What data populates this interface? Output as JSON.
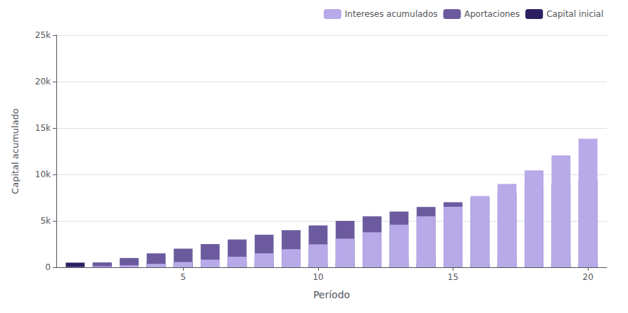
{
  "chart_data": {
    "type": "bar",
    "stacked": true,
    "xlabel": "Período",
    "ylabel": "Capital acumulado",
    "x": [
      1,
      2,
      3,
      4,
      5,
      6,
      7,
      8,
      9,
      10,
      11,
      12,
      13,
      14,
      15,
      16,
      17,
      18,
      19,
      20
    ],
    "series": [
      {
        "name": "Capital inicial",
        "color": "#2d2060",
        "values": [
          500,
          500,
          500,
          500,
          500,
          500,
          500,
          500,
          500,
          500,
          500,
          500,
          500,
          500,
          500,
          500,
          500,
          500,
          500,
          500
        ]
      },
      {
        "name": "Aportaciones",
        "color": "#6b5b9e",
        "values": [
          0,
          500,
          1000,
          1500,
          2000,
          2500,
          3000,
          3500,
          4000,
          4500,
          5000,
          5500,
          6000,
          6500,
          7000,
          7500,
          8000,
          8500,
          9000,
          9500
        ]
      },
      {
        "name": "Intereses acumulados",
        "color": "#b8a9e8",
        "values": [
          35,
          108,
          219,
          372,
          572,
          824,
          1134,
          1507,
          1951,
          2472,
          3078,
          3777,
          4577,
          5487,
          6516,
          7675,
          8975,
          10428,
          12047,
          13845
        ]
      }
    ],
    "xlim": [
      0.3,
      20.7
    ],
    "xticks": [
      5,
      10,
      15,
      20
    ],
    "ylim": [
      0,
      25000
    ],
    "yticks": [
      0,
      {
        "value": 5000,
        "label": "5k"
      },
      {
        "value": 10000,
        "label": "10k"
      },
      {
        "value": 15000,
        "label": "15k"
      },
      {
        "value": 20000,
        "label": "20k"
      },
      {
        "value": 25000,
        "label": "25k"
      }
    ],
    "grid": true,
    "legend": "upper right"
  }
}
